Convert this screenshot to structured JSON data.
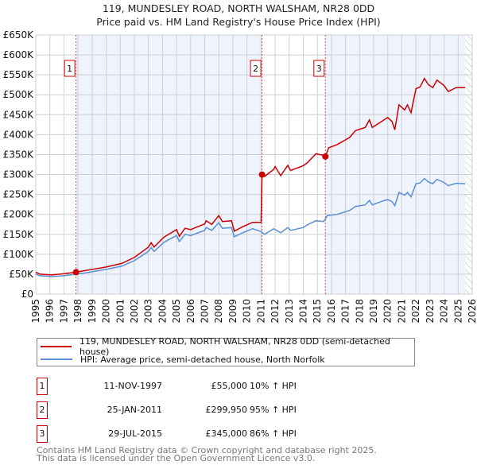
{
  "header": {
    "title": "119, MUNDESLEY ROAD, NORTH WALSHAM, NR28 0DD",
    "subtitle": "Price paid vs. HM Land Registry's House Price Index (HPI)"
  },
  "chart_data": {
    "type": "line",
    "title": "119, MUNDESLEY ROAD, NORTH WALSHAM, NR28 0DD",
    "subtitle": "Price paid vs. HM Land Registry's House Price Index (HPI)",
    "xlim": [
      1995,
      2026
    ],
    "ylim": [
      0,
      650000
    ],
    "x_ticks": [
      "1995",
      "1996",
      "1997",
      "1998",
      "1999",
      "2000",
      "2001",
      "2002",
      "2003",
      "2004",
      "2005",
      "2006",
      "2007",
      "2008",
      "2009",
      "2010",
      "2011",
      "2012",
      "2013",
      "2014",
      "2015",
      "2016",
      "2017",
      "2018",
      "2019",
      "2020",
      "2021",
      "2022",
      "2023",
      "2024",
      "2025",
      "2026"
    ],
    "y_ticks": [
      {
        "v": 0,
        "label": "£0"
      },
      {
        "v": 50000,
        "label": "£50K"
      },
      {
        "v": 100000,
        "label": "£100K"
      },
      {
        "v": 150000,
        "label": "£150K"
      },
      {
        "v": 200000,
        "label": "£200K"
      },
      {
        "v": 250000,
        "label": "£250K"
      },
      {
        "v": 300000,
        "label": "£300K"
      },
      {
        "v": 350000,
        "label": "£350K"
      },
      {
        "v": 400000,
        "label": "£400K"
      },
      {
        "v": 450000,
        "label": "£450K"
      },
      {
        "v": 500000,
        "label": "£500K"
      },
      {
        "v": 550000,
        "label": "£550K"
      },
      {
        "v": 600000,
        "label": "£600K"
      },
      {
        "v": 650000,
        "label": "£650K"
      }
    ],
    "grid": true,
    "shaded_periods": [
      [
        1997.86,
        2011.07
      ],
      [
        2015.57,
        2025.5
      ]
    ],
    "forecast_hatch_from": 2025.5,
    "series": [
      {
        "name": "119, MUNDESLEY ROAD, NORTH WALSHAM, NR28 0DD (semi-detached house)",
        "color": "#cc0000",
        "x": [
          1995,
          1995.3,
          1996.1,
          1997,
          1997.86,
          1998.5,
          2000,
          2001.1,
          2002,
          2003,
          2003.2,
          2003.4,
          2004.1,
          2005,
          2005.2,
          2005.6,
          2006,
          2007,
          2007.1,
          2007.5,
          2008,
          2008.25,
          2008.9,
          2009.1,
          2009.7,
          2010.4,
          2011.0,
          2011.07,
          2011.25,
          2011.9,
          2012.0,
          2012.4,
          2012.9,
          2013.1,
          2014,
          2014.3,
          2014.9,
          2015.45,
          2015.57,
          2015.8,
          2016.4,
          2017.3,
          2017.7,
          2018.4,
          2018.7,
          2018.9,
          2019.7,
          2020.0,
          2020.3,
          2020.5,
          2020.8,
          2021.2,
          2021.4,
          2021.65,
          2022.0,
          2022.3,
          2022.6,
          2022.9,
          2023.2,
          2023.5,
          2024.0,
          2024.3,
          2024.85,
          2025.5
        ],
        "y": [
          55000,
          50000,
          48000,
          51000,
          55000,
          59000,
          68000,
          77000,
          92000,
          118000,
          129000,
          118000,
          143000,
          162000,
          145000,
          165000,
          162000,
          176000,
          184000,
          175000,
          197000,
          182000,
          184000,
          158000,
          169000,
          180000,
          180000,
          299950,
          295000,
          313000,
          320000,
          297000,
          323000,
          310000,
          322000,
          330000,
          352000,
          348000,
          345000,
          367000,
          375000,
          393000,
          410000,
          418000,
          437000,
          418000,
          436000,
          443000,
          433000,
          412000,
          475000,
          462000,
          475000,
          455000,
          515000,
          520000,
          541000,
          525000,
          518000,
          537000,
          523000,
          508000,
          518000,
          518000
        ]
      },
      {
        "name": "HPI: Average price, semi-detached house, North Norfolk",
        "color": "#5b8fd4",
        "x": [
          1995,
          1995.3,
          1996.1,
          1997,
          1997.86,
          1998.5,
          2000,
          2001.1,
          2002,
          2003,
          2003.2,
          2003.4,
          2004.1,
          2005,
          2005.2,
          2005.6,
          2006,
          2007,
          2007.1,
          2007.5,
          2008,
          2008.25,
          2008.9,
          2009.1,
          2009.7,
          2010.4,
          2011.0,
          2011.25,
          2011.9,
          2012.4,
          2012.9,
          2013.1,
          2014,
          2014.3,
          2014.9,
          2015.45,
          2015.7,
          2016.4,
          2017.3,
          2017.7,
          2018.4,
          2018.7,
          2018.9,
          2019.7,
          2020.0,
          2020.3,
          2020.5,
          2020.8,
          2021.2,
          2021.4,
          2021.65,
          2022.0,
          2022.3,
          2022.6,
          2022.9,
          2023.2,
          2023.5,
          2024.0,
          2024.3,
          2024.85,
          2025.5
        ],
        "y": [
          50000,
          46000,
          44000,
          46000,
          50000,
          53000,
          62000,
          70000,
          84000,
          107000,
          117000,
          107000,
          130000,
          147000,
          132000,
          150000,
          147000,
          160000,
          167000,
          160000,
          179000,
          165000,
          167000,
          144000,
          154000,
          164000,
          157000,
          150000,
          164000,
          154000,
          167000,
          160000,
          167000,
          174000,
          184000,
          182000,
          197000,
          200000,
          210000,
          220000,
          224000,
          235000,
          224000,
          234000,
          237000,
          232000,
          222000,
          255000,
          248000,
          255000,
          244000,
          277000,
          279000,
          290000,
          281000,
          277000,
          288000,
          280000,
          272000,
          278000,
          277000
        ]
      }
    ],
    "sales": [
      {
        "id": "1",
        "x": 1997.86,
        "y": 55000
      },
      {
        "id": "2",
        "x": 2011.07,
        "y": 299950
      },
      {
        "id": "3",
        "x": 2015.57,
        "y": 345000
      }
    ]
  },
  "legend": {
    "red_label": "119, MUNDESLEY ROAD, NORTH WALSHAM, NR28 0DD (semi-detached house)",
    "blue_label": "HPI: Average price, semi-detached house, North Norfolk"
  },
  "sales_table": [
    {
      "num": "1",
      "date": "11-NOV-1997",
      "price": "£55,000",
      "hpi": "10% ↑ HPI"
    },
    {
      "num": "2",
      "date": "25-JAN-2011",
      "price": "£299,950",
      "hpi": "95% ↑ HPI"
    },
    {
      "num": "3",
      "date": "29-JUL-2015",
      "price": "£345,000",
      "hpi": "86% ↑ HPI"
    }
  ],
  "footer": {
    "line1": "Contains HM Land Registry data © Crown copyright and database right 2025.",
    "line2": "This data is licensed under the Open Government Licence v3.0."
  }
}
